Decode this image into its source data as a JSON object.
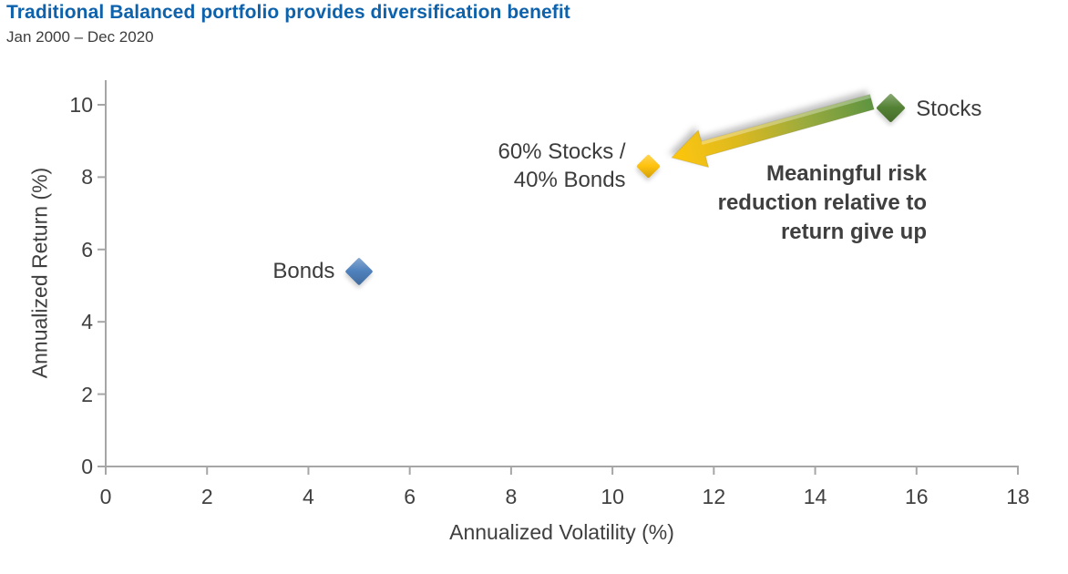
{
  "header": {
    "title": "Traditional Balanced portfolio provides diversification benefit",
    "subtitle": "Jan 2000 – Dec 2020"
  },
  "colors": {
    "title_blue": "#0e62ab",
    "text_gray": "#3f3f3f",
    "axis_gray": "#a6a6a6"
  },
  "chart_data": {
    "type": "scatter",
    "title": "Traditional Balanced portfolio provides diversification benefit",
    "subtitle": "Jan 2000 – Dec 2020",
    "xlabel": "Annualized Volatility (%)",
    "ylabel": "Annualized Return (%)",
    "xlim": [
      0,
      18
    ],
    "ylim": [
      0,
      10
    ],
    "xticks": [
      0,
      2,
      4,
      6,
      8,
      10,
      12,
      14,
      16,
      18
    ],
    "yticks": [
      0,
      2,
      4,
      6,
      8,
      10
    ],
    "grid": false,
    "legend": "none",
    "points": [
      {
        "name": "Bonds",
        "label_lines": [
          "Bonds"
        ],
        "x": 5.0,
        "y": 5.4,
        "color": "#4F81BD",
        "label_side": "left",
        "size": 22
      },
      {
        "name": "60% Stocks / 40% Bonds",
        "label_lines": [
          "60% Stocks /",
          "40% Bonds"
        ],
        "x": 10.7,
        "y": 8.3,
        "color": "#FFC20E",
        "label_side": "left",
        "size": 19
      },
      {
        "name": "Stocks",
        "label_lines": [
          "Stocks"
        ],
        "x": 15.5,
        "y": 9.9,
        "color": "#548235",
        "label_side": "right",
        "size": 23
      }
    ],
    "annotation": {
      "lines": [
        "Meaningful risk",
        "reduction relative to",
        "return give up"
      ],
      "arrow": {
        "from_x": 15.12,
        "from_y": 10.08,
        "to_x": 11.17,
        "to_y": 8.54,
        "gradient": [
          "#5f9440",
          "#9aab3e",
          "#dcb91f",
          "#ffc60d"
        ]
      }
    }
  }
}
